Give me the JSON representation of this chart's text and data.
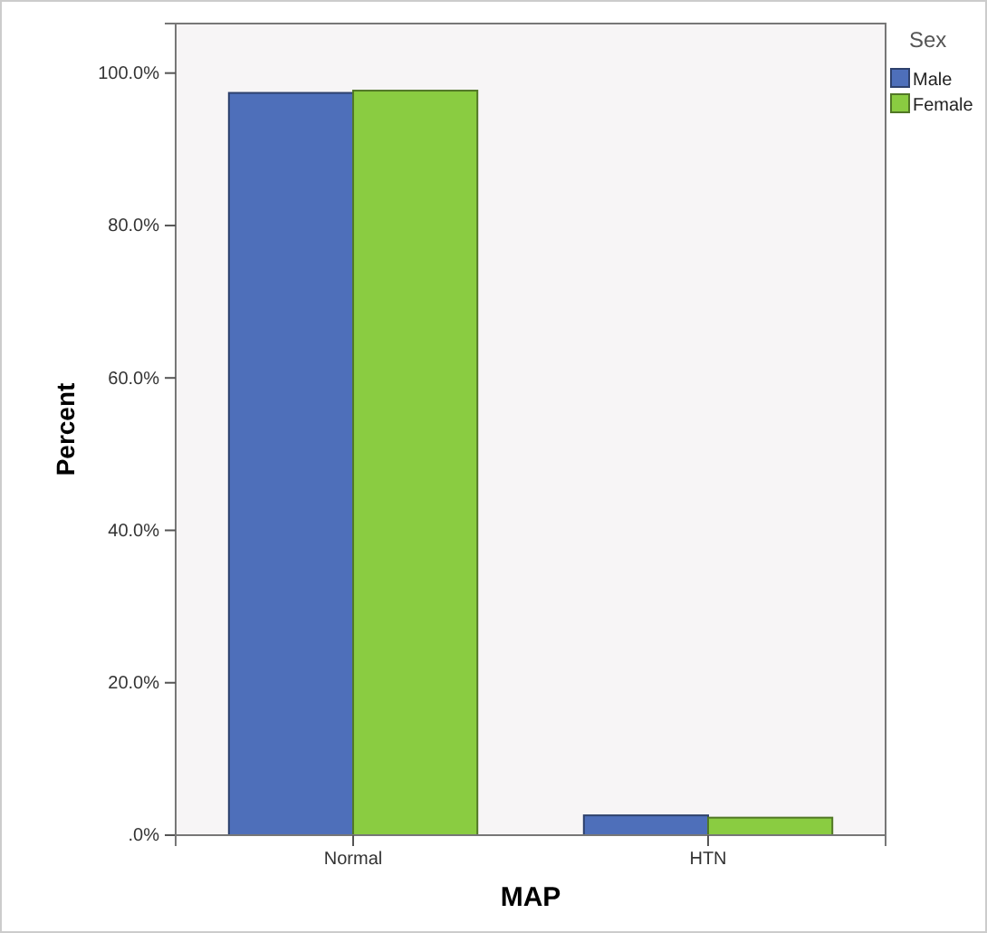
{
  "chart_data": {
    "type": "bar",
    "xlabel": "MAP",
    "ylabel": "Percent",
    "legend_title": "Sex",
    "categories": [
      "Normal",
      "HTN"
    ],
    "series": [
      {
        "name": "Male",
        "color": "#4e6fba",
        "values": [
          97.4,
          2.6
        ]
      },
      {
        "name": "Female",
        "color": "#8acc41",
        "values": [
          97.7,
          2.3
        ]
      }
    ],
    "ylim": [
      0,
      106.5
    ],
    "yticks": [
      {
        "value": 0,
        "label": ".0%"
      },
      {
        "value": 20,
        "label": "20.0%"
      },
      {
        "value": 40,
        "label": "40.0%"
      },
      {
        "value": 60,
        "label": "60.0%"
      },
      {
        "value": 80,
        "label": "80.0%"
      },
      {
        "value": 100,
        "label": "100.0%"
      }
    ],
    "legend": "top right",
    "grid": false
  }
}
